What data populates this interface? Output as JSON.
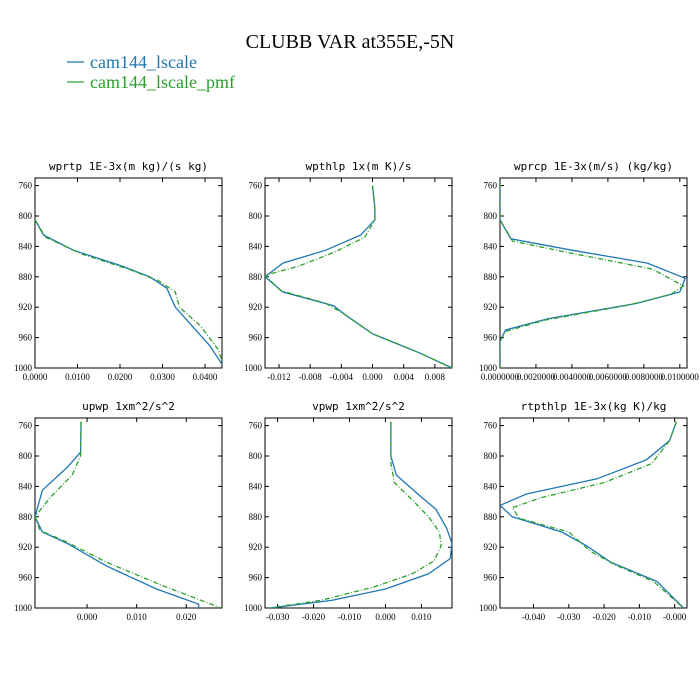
{
  "figure": {
    "title": "CLUBB VAR at355E,-5N",
    "legend": [
      {
        "label": "cam144_lscale",
        "color": "#1f77b4"
      },
      {
        "label": "cam144_lscale_pmf",
        "color": "#2ca02c"
      }
    ]
  },
  "chart_data": [
    {
      "type": "line",
      "title": "wprtp  1E-3x(m kg)/(s kg)",
      "xlim": [
        0.0,
        0.044
      ],
      "xticks": [
        0.0,
        0.01,
        0.02,
        0.03,
        0.04
      ],
      "xtick_labels": [
        "0.0000",
        "0.0100",
        "0.0200",
        "0.0300",
        "0.0400"
      ],
      "ylim": [
        1000,
        750
      ],
      "yticks": [
        760,
        800,
        840,
        880,
        920,
        960,
        1000
      ],
      "series": [
        {
          "name": "cam144_lscale",
          "color": "#1f77b4",
          "dashed": false,
          "points": [
            [
              0.0,
              805
            ],
            [
              0.002,
              825
            ],
            [
              0.009,
              845
            ],
            [
              0.02,
              865
            ],
            [
              0.027,
              880
            ],
            [
              0.031,
              895
            ],
            [
              0.033,
              920
            ],
            [
              0.037,
              945
            ],
            [
              0.041,
              970
            ],
            [
              0.044,
              995
            ]
          ]
        },
        {
          "name": "cam144_lscale_pmf",
          "color": "#2ca02c",
          "dashed": true,
          "points": [
            [
              0.0,
              805
            ],
            [
              0.0025,
              828
            ],
            [
              0.011,
              850
            ],
            [
              0.022,
              870
            ],
            [
              0.029,
              885
            ],
            [
              0.033,
              900
            ],
            [
              0.034,
              920
            ],
            [
              0.039,
              945
            ],
            [
              0.043,
              975
            ],
            [
              0.044,
              990
            ]
          ]
        }
      ]
    },
    {
      "type": "line",
      "title": "wpthlp  1x(m K)/s",
      "xlim": [
        -0.0138,
        0.0102
      ],
      "xticks": [
        -0.012,
        -0.008,
        -0.004,
        0.0,
        0.004,
        0.008
      ],
      "xtick_labels": [
        "-0.012",
        "-0.008",
        "-0.004",
        "0.000",
        "0.004",
        "0.008"
      ],
      "ylim": [
        1000,
        750
      ],
      "yticks": [
        760,
        800,
        840,
        880,
        920,
        960,
        1000
      ],
      "series": [
        {
          "name": "cam144_lscale",
          "color": "#1f77b4",
          "dashed": false,
          "points": [
            [
              0.0,
              760
            ],
            [
              0.0003,
              790
            ],
            [
              0.0003,
              805
            ],
            [
              -0.0015,
              825
            ],
            [
              -0.006,
              845
            ],
            [
              -0.0115,
              862
            ],
            [
              -0.0138,
              880
            ],
            [
              -0.0115,
              900
            ],
            [
              -0.005,
              918
            ],
            [
              -0.0035,
              930
            ],
            [
              0.0,
              955
            ],
            [
              0.006,
              980
            ],
            [
              0.0102,
              1000
            ]
          ]
        },
        {
          "name": "cam144_lscale_pmf",
          "color": "#2ca02c",
          "dashed": true,
          "points": [
            [
              0.0,
              760
            ],
            [
              0.0003,
              790
            ],
            [
              0.0003,
              805
            ],
            [
              -0.001,
              828
            ],
            [
              -0.005,
              848
            ],
            [
              -0.0095,
              866
            ],
            [
              -0.0138,
              878
            ],
            [
              -0.0118,
              898
            ],
            [
              -0.006,
              915
            ],
            [
              -0.0038,
              928
            ],
            [
              0.0,
              955
            ],
            [
              0.006,
              980
            ],
            [
              0.0102,
              1000
            ]
          ]
        }
      ]
    },
    {
      "type": "line",
      "title": "wprcp  1E-3x(m/s) (kg/kg)",
      "xlim": [
        0.0,
        0.0104
      ],
      "xticks": [
        0.0,
        0.002,
        0.004,
        0.006,
        0.008,
        0.01
      ],
      "xtick_labels": [
        "0.0000000",
        "0.0020000",
        "0.0040000",
        "0.0060000",
        "0.0080000",
        "0.0100000"
      ],
      "ylim": [
        1000,
        750
      ],
      "yticks": [
        760,
        800,
        840,
        880,
        920,
        960,
        1000
      ],
      "series": [
        {
          "name": "cam144_lscale",
          "color": "#1f77b4",
          "dashed": false,
          "points": [
            [
              0.0,
              755
            ],
            [
              0.0,
              805
            ],
            [
              0.0006,
              830
            ],
            [
              0.004,
              845
            ],
            [
              0.0082,
              862
            ],
            [
              0.0103,
              882
            ],
            [
              0.01,
              900
            ],
            [
              0.0076,
              915
            ],
            [
              0.0027,
              935
            ],
            [
              0.0003,
              950
            ],
            [
              0.0,
              965
            ],
            [
              0.0,
              1000
            ]
          ]
        },
        {
          "name": "cam144_lscale_pmf",
          "color": "#2ca02c",
          "dashed": true,
          "points": [
            [
              0.0,
              755
            ],
            [
              0.0,
              805
            ],
            [
              0.0007,
              833
            ],
            [
              0.0042,
              850
            ],
            [
              0.0085,
              870
            ],
            [
              0.0102,
              892
            ],
            [
              0.0095,
              903
            ],
            [
              0.0072,
              917
            ],
            [
              0.0025,
              937
            ],
            [
              0.0003,
              952
            ],
            [
              0.0,
              965
            ],
            [
              0.0,
              1000
            ]
          ]
        }
      ]
    },
    {
      "type": "line",
      "title": "upwp  1xm^2/s^2",
      "xlim": [
        -0.0105,
        0.0272
      ],
      "xticks": [
        0.0,
        0.01,
        0.02
      ],
      "xtick_labels": [
        "0.000",
        "0.010",
        "0.020"
      ],
      "ylim": [
        1000,
        750
      ],
      "yticks": [
        760,
        800,
        840,
        880,
        920,
        960,
        1000
      ],
      "series": [
        {
          "name": "cam144_lscale",
          "color": "#1f77b4",
          "dashed": false,
          "points": [
            [
              -0.0012,
              755
            ],
            [
              -0.0013,
              795
            ],
            [
              -0.004,
              815
            ],
            [
              -0.009,
              845
            ],
            [
              -0.0105,
              880
            ],
            [
              -0.009,
              900
            ],
            [
              -0.004,
              915
            ],
            [
              0.004,
              945
            ],
            [
              0.014,
              975
            ],
            [
              0.0225,
              995
            ],
            [
              0.0225,
              1000
            ]
          ]
        },
        {
          "name": "cam144_lscale_pmf",
          "color": "#2ca02c",
          "dashed": true,
          "points": [
            [
              -0.0012,
              755
            ],
            [
              -0.0013,
              800
            ],
            [
              -0.003,
              825
            ],
            [
              -0.0075,
              855
            ],
            [
              -0.0105,
              880
            ],
            [
              -0.0095,
              898
            ],
            [
              -0.0045,
              912
            ],
            [
              0.004,
              940
            ],
            [
              0.015,
              970
            ],
            [
              0.027,
              1000
            ]
          ]
        }
      ]
    },
    {
      "type": "line",
      "title": "vpwp  1xm^2/s^2",
      "xlim": [
        -0.0335,
        0.0185
      ],
      "xticks": [
        -0.03,
        -0.02,
        -0.01,
        0.0,
        0.01
      ],
      "xtick_labels": [
        "-0.030",
        "-0.020",
        "-0.010",
        "0.000",
        "0.010"
      ],
      "ylim": [
        1000,
        750
      ],
      "yticks": [
        760,
        800,
        840,
        880,
        920,
        960,
        1000
      ],
      "series": [
        {
          "name": "cam144_lscale",
          "color": "#1f77b4",
          "dashed": false,
          "points": [
            [
              0.0015,
              755
            ],
            [
              0.0015,
              800
            ],
            [
              0.003,
              825
            ],
            [
              0.009,
              850
            ],
            [
              0.014,
              870
            ],
            [
              0.017,
              895
            ],
            [
              0.0185,
              915
            ],
            [
              0.018,
              935
            ],
            [
              0.012,
              955
            ],
            [
              0.0,
              975
            ],
            [
              -0.015,
              990
            ],
            [
              -0.032,
              1000
            ]
          ]
        },
        {
          "name": "cam144_lscale_pmf",
          "color": "#2ca02c",
          "dashed": true,
          "points": [
            [
              0.0015,
              755
            ],
            [
              0.0015,
              810
            ],
            [
              0.0025,
              835
            ],
            [
              0.0075,
              858
            ],
            [
              0.012,
              880
            ],
            [
              0.015,
              900
            ],
            [
              0.0155,
              918
            ],
            [
              0.0135,
              938
            ],
            [
              0.0075,
              955
            ],
            [
              -0.003,
              972
            ],
            [
              -0.018,
              990
            ],
            [
              -0.0325,
              1000
            ]
          ]
        }
      ]
    },
    {
      "type": "line",
      "title": "rtpthlp  1E-3x(kg K)/kg",
      "xlim": [
        -0.0495,
        0.0035
      ],
      "xticks": [
        -0.04,
        -0.03,
        -0.02,
        -0.01,
        0.0
      ],
      "xtick_labels": [
        "-0.040",
        "-0.030",
        "-0.020",
        "-0.010",
        "-0.000"
      ],
      "ylim": [
        1000,
        750
      ],
      "yticks": [
        760,
        800,
        840,
        880,
        920,
        960,
        1000
      ],
      "series": [
        {
          "name": "cam144_lscale",
          "color": "#1f77b4",
          "dashed": false,
          "points": [
            [
              0.0005,
              755
            ],
            [
              -0.0015,
              780
            ],
            [
              -0.008,
              805
            ],
            [
              -0.022,
              830
            ],
            [
              -0.042,
              850
            ],
            [
              -0.0495,
              865
            ],
            [
              -0.046,
              880
            ],
            [
              -0.032,
              900
            ],
            [
              -0.025,
              918
            ],
            [
              -0.018,
              940
            ],
            [
              -0.005,
              965
            ],
            [
              0.0025,
              1000
            ]
          ]
        },
        {
          "name": "cam144_lscale_pmf",
          "color": "#2ca02c",
          "dashed": true,
          "points": [
            [
              0.0005,
              755
            ],
            [
              -0.0015,
              780
            ],
            [
              -0.0065,
              810
            ],
            [
              -0.02,
              835
            ],
            [
              -0.038,
              855
            ],
            [
              -0.046,
              868
            ],
            [
              -0.044,
              882
            ],
            [
              -0.03,
              900
            ],
            [
              -0.024,
              925
            ],
            [
              -0.017,
              943
            ],
            [
              -0.006,
              965
            ],
            [
              0.0025,
              1000
            ]
          ]
        }
      ]
    }
  ]
}
